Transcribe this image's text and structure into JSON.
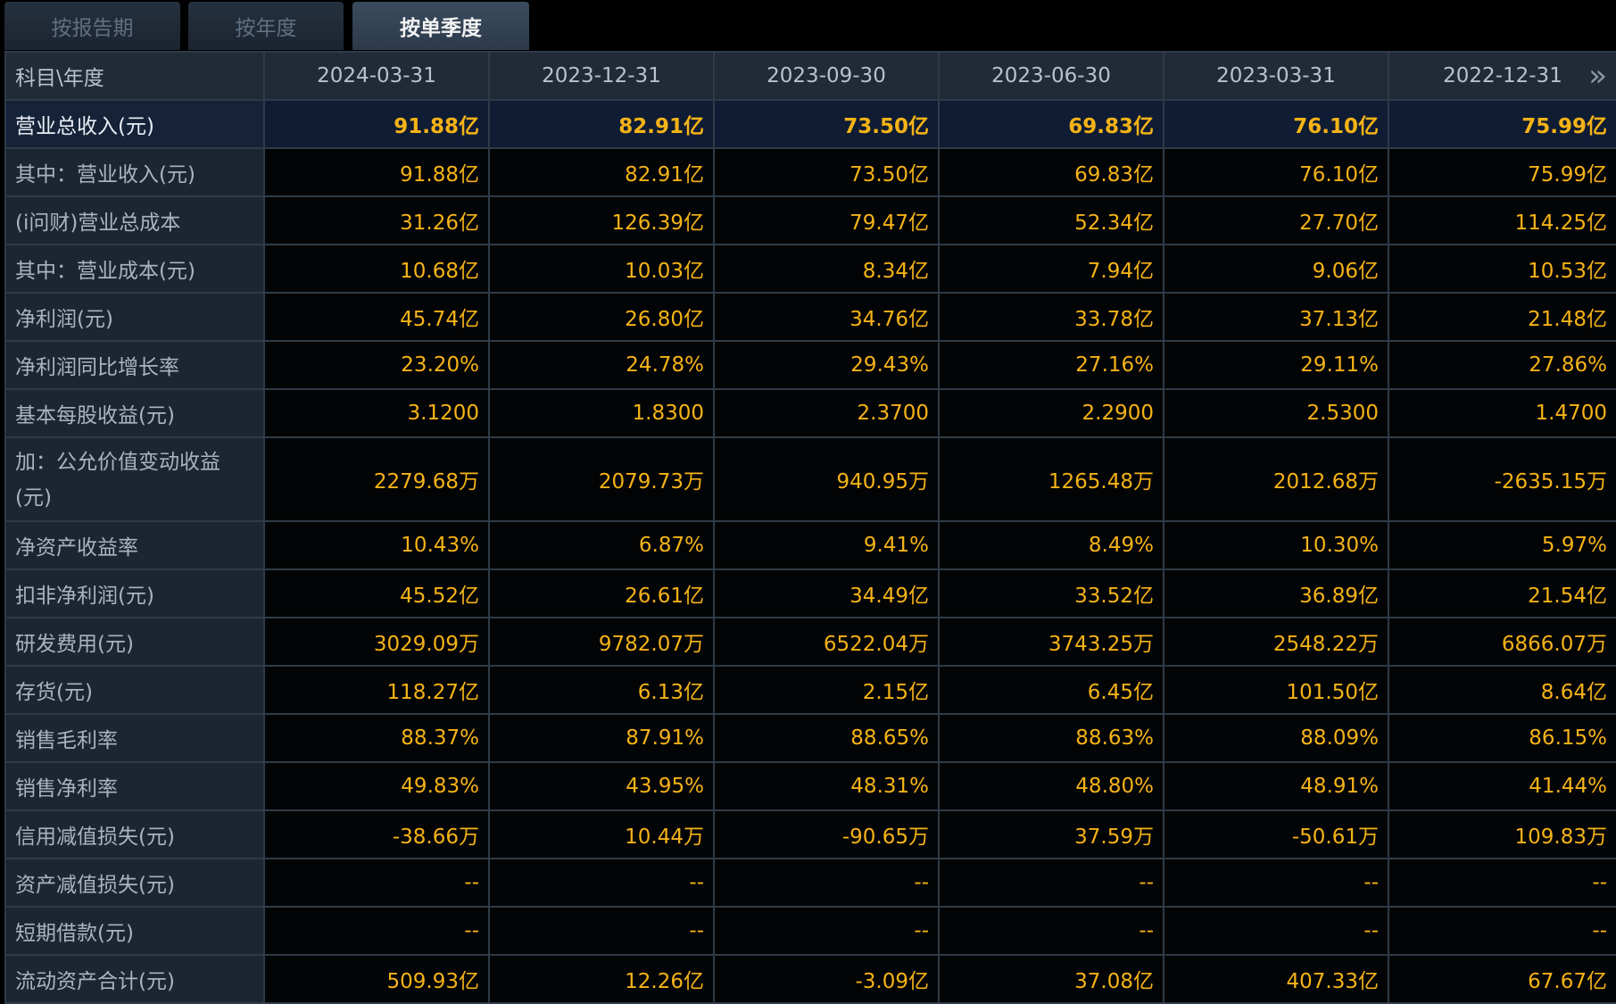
{
  "tabs": [
    {
      "label": "按报告期",
      "active": false
    },
    {
      "label": "按年度",
      "active": false
    },
    {
      "label": "按单季度",
      "active": true
    }
  ],
  "table": {
    "corner": "科目\\年度",
    "columns": [
      "2024-03-31",
      "2023-12-31",
      "2023-09-30",
      "2023-06-30",
      "2023-03-31",
      "2022-12-31"
    ],
    "next_icon": "double-chevron-right-icon",
    "rows": [
      {
        "label": "营业总收入(元)",
        "values": [
          "91.88亿",
          "82.91亿",
          "73.50亿",
          "69.83亿",
          "76.10亿",
          "75.99亿"
        ]
      },
      {
        "label": "其中：营业收入(元)",
        "values": [
          "91.88亿",
          "82.91亿",
          "73.50亿",
          "69.83亿",
          "76.10亿",
          "75.99亿"
        ]
      },
      {
        "label": "(i问财)营业总成本",
        "values": [
          "31.26亿",
          "126.39亿",
          "79.47亿",
          "52.34亿",
          "27.70亿",
          "114.25亿"
        ]
      },
      {
        "label": "其中：营业成本(元)",
        "values": [
          "10.68亿",
          "10.03亿",
          "8.34亿",
          "7.94亿",
          "9.06亿",
          "10.53亿"
        ]
      },
      {
        "label": "净利润(元)",
        "values": [
          "45.74亿",
          "26.80亿",
          "34.76亿",
          "33.78亿",
          "37.13亿",
          "21.48亿"
        ]
      },
      {
        "label": "净利润同比增长率",
        "values": [
          "23.20%",
          "24.78%",
          "29.43%",
          "27.16%",
          "29.11%",
          "27.86%"
        ]
      },
      {
        "label": "基本每股收益(元)",
        "values": [
          "3.1200",
          "1.8300",
          "2.3700",
          "2.2900",
          "2.5300",
          "1.4700"
        ]
      },
      {
        "label": "加：公允价值变动收益(元)",
        "values": [
          "2279.68万",
          "2079.73万",
          "940.95万",
          "1265.48万",
          "2012.68万",
          "-2635.15万"
        ]
      },
      {
        "label": "净资产收益率",
        "values": [
          "10.43%",
          "6.87%",
          "9.41%",
          "8.49%",
          "10.30%",
          "5.97%"
        ]
      },
      {
        "label": "扣非净利润(元)",
        "values": [
          "45.52亿",
          "26.61亿",
          "34.49亿",
          "33.52亿",
          "36.89亿",
          "21.54亿"
        ]
      },
      {
        "label": "研发费用(元)",
        "values": [
          "3029.09万",
          "9782.07万",
          "6522.04万",
          "3743.25万",
          "2548.22万",
          "6866.07万"
        ]
      },
      {
        "label": "存货(元)",
        "values": [
          "118.27亿",
          "6.13亿",
          "2.15亿",
          "6.45亿",
          "101.50亿",
          "8.64亿"
        ]
      },
      {
        "label": "销售毛利率",
        "values": [
          "88.37%",
          "87.91%",
          "88.65%",
          "88.63%",
          "88.09%",
          "86.15%"
        ]
      },
      {
        "label": "销售净利率",
        "values": [
          "49.83%",
          "43.95%",
          "48.31%",
          "48.80%",
          "48.91%",
          "41.44%"
        ]
      },
      {
        "label": "信用减值损失(元)",
        "values": [
          "-38.66万",
          "10.44万",
          "-90.65万",
          "37.59万",
          "-50.61万",
          "109.83万"
        ]
      },
      {
        "label": "资产减值损失(元)",
        "values": [
          "--",
          "--",
          "--",
          "--",
          "--",
          "--"
        ]
      },
      {
        "label": "短期借款(元)",
        "values": [
          "--",
          "--",
          "--",
          "--",
          "--",
          "--"
        ]
      },
      {
        "label": "流动资产合计(元)",
        "values": [
          "509.93亿",
          "12.26亿",
          "-3.09亿",
          "37.08亿",
          "407.33亿",
          "67.67亿"
        ]
      }
    ]
  }
}
